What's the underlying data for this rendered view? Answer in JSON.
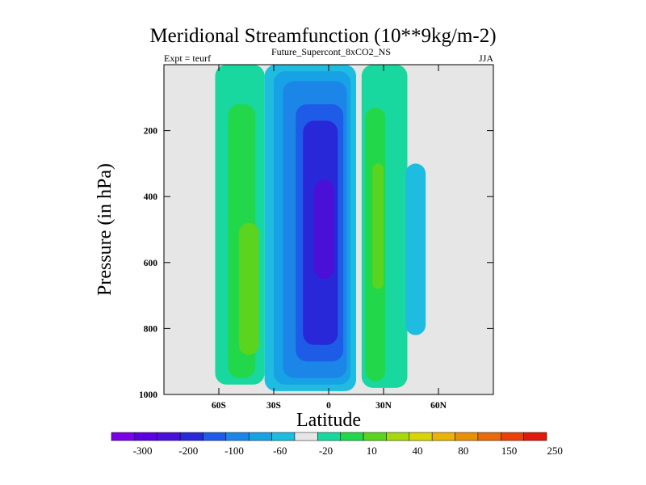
{
  "chart_data": {
    "type": "contour",
    "title": "Meridional Streamfunction (10**9kg/m-2)",
    "subtitle_left": "Expt = teurf",
    "subtitle_center": "Future_Supercont_8xCO2_NS",
    "subtitle_right": "JJA",
    "xlabel": "Latitude",
    "ylabel": "Pressure (in hPa)",
    "xlim": [
      -90,
      90
    ],
    "ylim": [
      1000,
      0
    ],
    "x_ticks": [
      {
        "value": -60,
        "label": "60S"
      },
      {
        "value": -30,
        "label": "30S"
      },
      {
        "value": 0,
        "label": "0"
      },
      {
        "value": 30,
        "label": "30N"
      },
      {
        "value": 60,
        "label": "60N"
      }
    ],
    "y_ticks": [
      {
        "value": 200,
        "label": "200"
      },
      {
        "value": 400,
        "label": "400"
      },
      {
        "value": 600,
        "label": "600"
      },
      {
        "value": 800,
        "label": "800"
      },
      {
        "value": 1000,
        "label": "1000"
      }
    ],
    "colorbar": {
      "colors": [
        "#7a00e6",
        "#5a00e0",
        "#4a10d8",
        "#2828d8",
        "#1e5ce8",
        "#1c86e8",
        "#18a2e6",
        "#1ebce0",
        "#e6e6e6",
        "#18d8a0",
        "#22d84a",
        "#5ad41e",
        "#a6d80e",
        "#d8d40a",
        "#e8b40a",
        "#e8900a",
        "#e86a0a",
        "#e8420a",
        "#e01a0a"
      ],
      "labels": [
        "-300",
        "-200",
        "-100",
        "-60",
        "-20",
        "10",
        "40",
        "80",
        "150",
        "250"
      ]
    },
    "regions": [
      {
        "fill": "#1ebce0",
        "x_range": [
          -35,
          15
        ],
        "p_range": [
          0,
          990
        ],
        "level": "-10"
      },
      {
        "fill": "#18a2e6",
        "x_range": [
          -30,
          12
        ],
        "p_range": [
          20,
          970
        ],
        "level": "-20"
      },
      {
        "fill": "#1c86e8",
        "x_range": [
          -25,
          10
        ],
        "p_range": [
          50,
          950
        ],
        "level": "-40"
      },
      {
        "fill": "#1e5ce8",
        "x_range": [
          -18,
          8
        ],
        "p_range": [
          120,
          900
        ],
        "level": "-60"
      },
      {
        "fill": "#2828d8",
        "x_range": [
          -14,
          5
        ],
        "p_range": [
          170,
          850
        ],
        "level": "-100"
      },
      {
        "fill": "#4a10d8",
        "x_range": [
          -8,
          3
        ],
        "p_range": [
          350,
          650
        ],
        "level": "-150"
      },
      {
        "fill": "#18d8a0",
        "x_range": [
          -62,
          -35
        ],
        "p_range": [
          0,
          970
        ],
        "level": "10"
      },
      {
        "fill": "#22d84a",
        "x_range": [
          -55,
          -40
        ],
        "p_range": [
          120,
          950
        ],
        "level": "20"
      },
      {
        "fill": "#5ad41e",
        "x_range": [
          -49,
          -38
        ],
        "p_range": [
          480,
          880
        ],
        "level": "30"
      },
      {
        "fill": "#18d8a0",
        "x_range": [
          18,
          43
        ],
        "p_range": [
          0,
          980
        ],
        "level": "10"
      },
      {
        "fill": "#22d84a",
        "x_range": [
          20,
          31
        ],
        "p_range": [
          130,
          960
        ],
        "level": "20"
      },
      {
        "fill": "#5ad41e",
        "x_range": [
          24,
          30
        ],
        "p_range": [
          300,
          680
        ],
        "level": "30"
      },
      {
        "fill": "#1ebce0",
        "x_range": [
          42,
          53
        ],
        "p_range": [
          300,
          820
        ],
        "level": "-10"
      }
    ]
  }
}
